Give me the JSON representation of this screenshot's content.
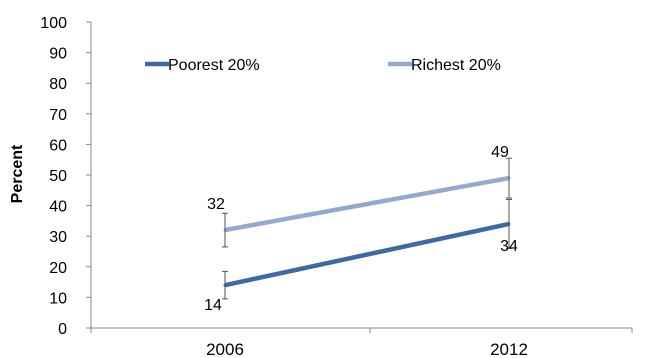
{
  "chart_data": {
    "type": "line",
    "categories": [
      "2006",
      "2012"
    ],
    "series": [
      {
        "name": "Poorest 20%",
        "values": [
          14,
          34
        ],
        "errors": [
          4.5,
          8
        ],
        "color": "#41699e"
      },
      {
        "name": "Richest 20%",
        "values": [
          32,
          49
        ],
        "errors": [
          5.5,
          6.5
        ],
        "color": "#93a9cf"
      }
    ],
    "data_labels": [
      {
        "series": 0,
        "point": 0,
        "text": "14",
        "placement": "below-left"
      },
      {
        "series": 0,
        "point": 1,
        "text": "34",
        "placement": "below"
      },
      {
        "series": 1,
        "point": 0,
        "text": "32",
        "placement": "above-left"
      },
      {
        "series": 1,
        "point": 1,
        "text": "49",
        "placement": "above-left"
      }
    ],
    "ylabel": "Percent",
    "xlabel": "",
    "ylim": [
      0,
      100
    ],
    "yticks": [
      0,
      10,
      20,
      30,
      40,
      50,
      60,
      70,
      80,
      90,
      100
    ],
    "grid": false,
    "legend": {
      "placement": "top-inside",
      "orientation": "horizontal"
    }
  }
}
